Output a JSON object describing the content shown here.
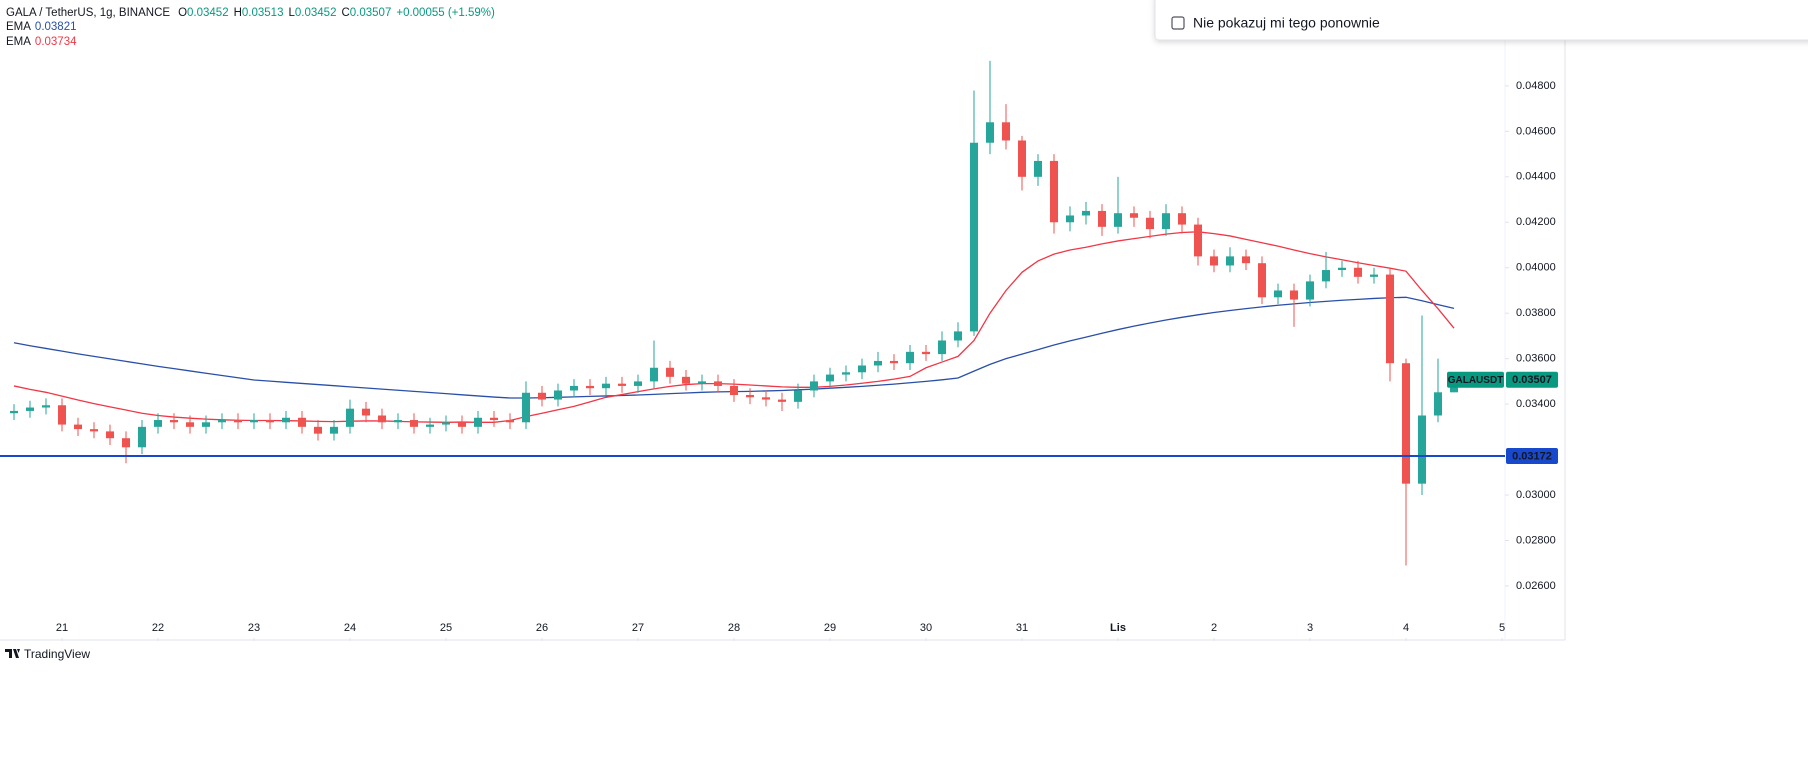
{
  "header": {
    "symbol": "GALA / TetherUS, 1g, BINANCE",
    "ohlc": [
      {
        "key": "O",
        "value": "0.03452"
      },
      {
        "key": "H",
        "value": "0.03513"
      },
      {
        "key": "L",
        "value": "0.03452"
      },
      {
        "key": "C",
        "value": "0.03507"
      }
    ],
    "change": "+0.00055 (+1.59%)",
    "indicators": [
      {
        "name": "EMA",
        "value": "0.03821"
      },
      {
        "name": "EMA",
        "value": "0.03734"
      }
    ]
  },
  "popup": {
    "checkbox_label": "Nie pokazuj mi tego ponownie"
  },
  "footer": {
    "brand": "TradingView"
  },
  "chart_data": {
    "type": "candlestick",
    "up_color": "#26a69a",
    "down_color": "#ef5350",
    "xlim": [
      -15.5,
      360.75
    ],
    "ylim": [
      0.02371,
      0.05178
    ],
    "xticks": [
      {
        "value": 0,
        "label": "21"
      },
      {
        "value": 24,
        "label": "22"
      },
      {
        "value": 48,
        "label": "23"
      },
      {
        "value": 72,
        "label": "24"
      },
      {
        "value": 96,
        "label": "25"
      },
      {
        "value": 120,
        "label": "26"
      },
      {
        "value": 144,
        "label": "27"
      },
      {
        "value": 168,
        "label": "28"
      },
      {
        "value": 192,
        "label": "29"
      },
      {
        "value": 216,
        "label": "30"
      },
      {
        "value": 240,
        "label": "31"
      },
      {
        "value": 264,
        "label": "Lis"
      },
      {
        "value": 288,
        "label": "2"
      },
      {
        "value": 312,
        "label": "3"
      },
      {
        "value": 336,
        "label": "4"
      },
      {
        "value": 360,
        "label": "5"
      }
    ],
    "yticks": [
      {
        "value": 0.026,
        "label": "0.02600"
      },
      {
        "value": 0.028,
        "label": "0.02800"
      },
      {
        "value": 0.03,
        "label": "0.03000"
      },
      {
        "value": 0.034,
        "label": "0.03400"
      },
      {
        "value": 0.036,
        "label": "0.03600"
      },
      {
        "value": 0.038,
        "label": "0.03800"
      },
      {
        "value": 0.04,
        "label": "0.04000"
      },
      {
        "value": 0.042,
        "label": "0.04200"
      },
      {
        "value": 0.044,
        "label": "0.04400"
      },
      {
        "value": 0.046,
        "label": "0.04600"
      },
      {
        "value": 0.048,
        "label": "0.04800"
      }
    ],
    "candles": {
      "x": [
        -12,
        -8,
        -4,
        0,
        4,
        8,
        12,
        16,
        20,
        24,
        28,
        32,
        36,
        40,
        44,
        48,
        52,
        56,
        60,
        64,
        68,
        72,
        76,
        80,
        84,
        88,
        92,
        96,
        100,
        104,
        108,
        112,
        116,
        120,
        124,
        128,
        132,
        136,
        140,
        144,
        148,
        152,
        156,
        160,
        164,
        168,
        172,
        176,
        180,
        184,
        188,
        192,
        196,
        200,
        204,
        208,
        212,
        216,
        220,
        224,
        228,
        232,
        236,
        240,
        244,
        248,
        252,
        256,
        260,
        264,
        268,
        272,
        276,
        280,
        284,
        288,
        292,
        296,
        300,
        304,
        308,
        312,
        316,
        320,
        324,
        328,
        332,
        336,
        340,
        344,
        348
      ],
      "open": [
        0.0336,
        0.0337,
        0.03385,
        0.03395,
        0.0331,
        0.0329,
        0.0328,
        0.0325,
        0.0321,
        0.033,
        0.0333,
        0.0332,
        0.033,
        0.0332,
        0.0333,
        0.0332,
        0.0333,
        0.0332,
        0.0334,
        0.033,
        0.0327,
        0.033,
        0.0338,
        0.0335,
        0.0332,
        0.0333,
        0.033,
        0.0331,
        0.0332,
        0.033,
        0.0334,
        0.0333,
        0.0332,
        0.0345,
        0.0342,
        0.0346,
        0.0348,
        0.0347,
        0.0349,
        0.0348,
        0.035,
        0.0356,
        0.0352,
        0.0349,
        0.035,
        0.0348,
        0.0344,
        0.0343,
        0.0342,
        0.0341,
        0.0346,
        0.035,
        0.0353,
        0.0354,
        0.0357,
        0.0359,
        0.0358,
        0.0363,
        0.0362,
        0.0368,
        0.0372,
        0.0455,
        0.0464,
        0.0456,
        0.044,
        0.0447,
        0.042,
        0.0423,
        0.0425,
        0.0418,
        0.0424,
        0.0422,
        0.0417,
        0.0424,
        0.0419,
        0.0405,
        0.0401,
        0.0405,
        0.0402,
        0.0387,
        0.039,
        0.0386,
        0.0394,
        0.0399,
        0.04,
        0.0396,
        0.0397,
        0.0358,
        0.0305,
        0.0335,
        0.03452
      ],
      "high": [
        0.034,
        0.03415,
        0.03425,
        0.03425,
        0.0334,
        0.0332,
        0.0331,
        0.0328,
        0.0333,
        0.0336,
        0.0336,
        0.0335,
        0.0335,
        0.0336,
        0.0336,
        0.0336,
        0.0336,
        0.0337,
        0.0337,
        0.0333,
        0.0333,
        0.0342,
        0.0341,
        0.0338,
        0.0336,
        0.0336,
        0.0334,
        0.0335,
        0.0335,
        0.0337,
        0.0337,
        0.0336,
        0.035,
        0.0348,
        0.0349,
        0.0351,
        0.0351,
        0.0352,
        0.0352,
        0.0353,
        0.0368,
        0.0359,
        0.0355,
        0.0353,
        0.0353,
        0.0351,
        0.0347,
        0.0346,
        0.0345,
        0.0349,
        0.0353,
        0.0356,
        0.0357,
        0.036,
        0.0363,
        0.0362,
        0.0366,
        0.0366,
        0.0372,
        0.0376,
        0.0478,
        0.0491,
        0.0472,
        0.0458,
        0.045,
        0.045,
        0.0427,
        0.0429,
        0.0428,
        0.044,
        0.0427,
        0.0425,
        0.0428,
        0.0427,
        0.0422,
        0.0408,
        0.0409,
        0.0408,
        0.0405,
        0.0393,
        0.0393,
        0.0397,
        0.0407,
        0.0403,
        0.0403,
        0.04,
        0.04,
        0.036,
        0.0379,
        0.036,
        0.03513
      ],
      "low": [
        0.0333,
        0.0334,
        0.03355,
        0.0328,
        0.0326,
        0.0325,
        0.0322,
        0.0314,
        0.0318,
        0.0327,
        0.0329,
        0.0327,
        0.0327,
        0.0329,
        0.0329,
        0.0329,
        0.0329,
        0.0329,
        0.0327,
        0.0324,
        0.0324,
        0.0327,
        0.0332,
        0.0329,
        0.0329,
        0.0327,
        0.0327,
        0.0328,
        0.0327,
        0.0327,
        0.033,
        0.0329,
        0.0329,
        0.0339,
        0.0339,
        0.0343,
        0.0344,
        0.0344,
        0.0345,
        0.0345,
        0.0347,
        0.0349,
        0.0346,
        0.0346,
        0.0345,
        0.0341,
        0.034,
        0.0339,
        0.0337,
        0.0338,
        0.0343,
        0.0347,
        0.035,
        0.0351,
        0.0354,
        0.0355,
        0.0355,
        0.0359,
        0.0359,
        0.0365,
        0.037,
        0.045,
        0.0452,
        0.0434,
        0.0436,
        0.0415,
        0.0416,
        0.0419,
        0.0414,
        0.0415,
        0.0418,
        0.0413,
        0.0414,
        0.0415,
        0.0401,
        0.0398,
        0.0398,
        0.0399,
        0.0384,
        0.0384,
        0.0374,
        0.0383,
        0.0391,
        0.0396,
        0.0393,
        0.0393,
        0.035,
        0.0269,
        0.03,
        0.0332,
        0.03452
      ],
      "close": [
        0.0337,
        0.03385,
        0.03395,
        0.0331,
        0.0329,
        0.0328,
        0.0325,
        0.0321,
        0.033,
        0.0333,
        0.0332,
        0.033,
        0.0332,
        0.0333,
        0.0332,
        0.0333,
        0.0332,
        0.0334,
        0.033,
        0.0327,
        0.033,
        0.0338,
        0.0335,
        0.0332,
        0.0333,
        0.033,
        0.0331,
        0.0332,
        0.033,
        0.0334,
        0.0333,
        0.0332,
        0.0345,
        0.0342,
        0.0346,
        0.0348,
        0.0347,
        0.0349,
        0.0348,
        0.035,
        0.0356,
        0.0352,
        0.0349,
        0.035,
        0.0348,
        0.0344,
        0.0343,
        0.0342,
        0.0341,
        0.0346,
        0.035,
        0.0353,
        0.0354,
        0.0357,
        0.0359,
        0.0358,
        0.0363,
        0.0362,
        0.0368,
        0.0372,
        0.0455,
        0.0464,
        0.0456,
        0.044,
        0.0447,
        0.042,
        0.0423,
        0.0425,
        0.0418,
        0.0424,
        0.0422,
        0.0417,
        0.0424,
        0.0419,
        0.0405,
        0.0401,
        0.0405,
        0.0402,
        0.0387,
        0.039,
        0.0386,
        0.0394,
        0.0399,
        0.04,
        0.0396,
        0.0397,
        0.0358,
        0.0305,
        0.0335,
        0.03452,
        0.03507
      ]
    },
    "ema": [
      {
        "color": "#2a4fa8",
        "values": [
          0.0367,
          0.03657,
          0.03645,
          0.03633,
          0.03621,
          0.0361,
          0.03599,
          0.03588,
          0.03577,
          0.03566,
          0.03556,
          0.03546,
          0.03536,
          0.03526,
          0.03516,
          0.03506,
          0.03501,
          0.03496,
          0.03491,
          0.03486,
          0.03481,
          0.03476,
          0.03471,
          0.03466,
          0.03461,
          0.03456,
          0.03451,
          0.03446,
          0.03441,
          0.03436,
          0.03431,
          0.03427,
          0.03427,
          0.03428,
          0.0343,
          0.03432,
          0.03434,
          0.03436,
          0.03438,
          0.0344,
          0.03443,
          0.03446,
          0.03449,
          0.03452,
          0.03454,
          0.03455,
          0.03456,
          0.03458,
          0.0346,
          0.03463,
          0.03466,
          0.0347,
          0.03474,
          0.03478,
          0.03483,
          0.03488,
          0.03494,
          0.035,
          0.03507,
          0.03515,
          0.03545,
          0.03575,
          0.036,
          0.0362,
          0.0364,
          0.0366,
          0.03678,
          0.03695,
          0.03712,
          0.03728,
          0.03743,
          0.03757,
          0.0377,
          0.03782,
          0.03793,
          0.03803,
          0.03812,
          0.0382,
          0.03828,
          0.03835,
          0.03841,
          0.03847,
          0.03852,
          0.03857,
          0.03861,
          0.03865,
          0.03868,
          0.0387,
          0.03855,
          0.03838,
          0.03821
        ]
      },
      {
        "color": "#f23645",
        "values": [
          0.0348,
          0.03465,
          0.03452,
          0.03435,
          0.03418,
          0.03402,
          0.03388,
          0.03374,
          0.0336,
          0.0335,
          0.03343,
          0.03338,
          0.03334,
          0.03331,
          0.03329,
          0.03328,
          0.03328,
          0.03327,
          0.03326,
          0.03324,
          0.03323,
          0.03325,
          0.03326,
          0.03326,
          0.03324,
          0.03322,
          0.03321,
          0.0332,
          0.03321,
          0.0332,
          0.0332,
          0.03328,
          0.03345,
          0.0336,
          0.03375,
          0.0339,
          0.0341,
          0.0343,
          0.03442,
          0.03455,
          0.03467,
          0.03478,
          0.03486,
          0.0349,
          0.0349,
          0.03488,
          0.03484,
          0.0348,
          0.03476,
          0.03474,
          0.03474,
          0.03478,
          0.03484,
          0.03492,
          0.035,
          0.0351,
          0.03522,
          0.0356,
          0.03585,
          0.0361,
          0.0368,
          0.038,
          0.039,
          0.0398,
          0.0403,
          0.0406,
          0.04078,
          0.0409,
          0.04105,
          0.04118,
          0.04128,
          0.04138,
          0.04148,
          0.04155,
          0.04158,
          0.0415,
          0.0414,
          0.04125,
          0.0411,
          0.04095,
          0.04078,
          0.04062,
          0.04048,
          0.04035,
          0.04022,
          0.0401,
          0.03998,
          0.03985,
          0.039,
          0.0382,
          0.03734
        ]
      }
    ],
    "hline": {
      "value": 0.03172,
      "color": "#1848cc"
    },
    "last_price": {
      "symbol": "GALAUSDT",
      "value": 0.03507,
      "color": "#089981"
    }
  }
}
